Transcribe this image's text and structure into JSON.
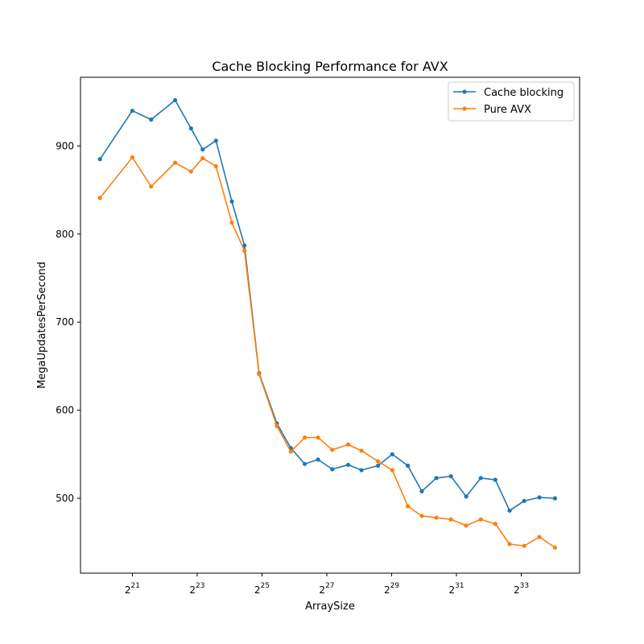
{
  "chart_data": {
    "type": "line",
    "title": "Cache Blocking Performance for AVX",
    "xlabel": "ArraySize",
    "ylabel": "MegaUpdatesPerSecond",
    "x_scale": "log2",
    "xlim_log2": [
      19.4,
      34.8
    ],
    "ylim": [
      415,
      978
    ],
    "x_ticks": [
      {
        "base": "2",
        "exp": "21",
        "log2": 21
      },
      {
        "base": "2",
        "exp": "23",
        "log2": 23
      },
      {
        "base": "2",
        "exp": "25",
        "log2": 25
      },
      {
        "base": "2",
        "exp": "27",
        "log2": 27
      },
      {
        "base": "2",
        "exp": "29",
        "log2": 29
      },
      {
        "base": "2",
        "exp": "31",
        "log2": 31
      },
      {
        "base": "2",
        "exp": "33",
        "log2": 33
      }
    ],
    "y_ticks": [
      {
        "label": "500",
        "value": 500
      },
      {
        "label": "600",
        "value": 600
      },
      {
        "label": "700",
        "value": 700
      },
      {
        "label": "800",
        "value": 800
      },
      {
        "label": "900",
        "value": 900
      }
    ],
    "x_log2": [
      20.0,
      21.0,
      21.58,
      22.32,
      22.81,
      23.17,
      23.58,
      24.07,
      24.46,
      24.91,
      25.46,
      25.89,
      26.32,
      26.73,
      27.17,
      27.66,
      28.07,
      28.58,
      29.02,
      29.5,
      29.93,
      30.38,
      30.83,
      31.3,
      31.75,
      32.2,
      32.64,
      33.09,
      33.56,
      34.04
    ],
    "series": [
      {
        "name": "Cache blocking",
        "color": "#1f77b4",
        "values": [
          885,
          940,
          930,
          952,
          920,
          896,
          906,
          837,
          787,
          642,
          585,
          557,
          539,
          544,
          533,
          538,
          532,
          537,
          550,
          537,
          508,
          523,
          525,
          502,
          523,
          521,
          486,
          497,
          501,
          500
        ]
      },
      {
        "name": "Pure AVX",
        "color": "#ff7f0e",
        "values": [
          841,
          887,
          854,
          881,
          871,
          886,
          877,
          813,
          781,
          641,
          582,
          553,
          569,
          569,
          555,
          561,
          554,
          542,
          532,
          491,
          480,
          478,
          476,
          469,
          476,
          471,
          448,
          446,
          456,
          444
        ]
      }
    ],
    "legend_position": "top-right",
    "grid": false
  }
}
